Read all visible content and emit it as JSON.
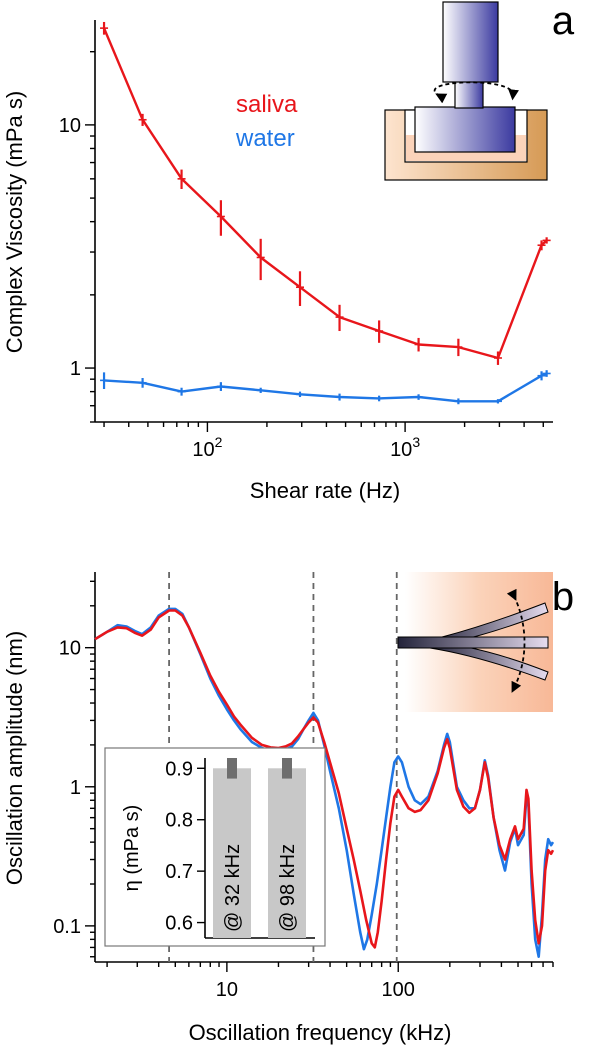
{
  "colors": {
    "saliva": "#e8161b",
    "water": "#1f77e6",
    "inset_bar": "#c8c8c8",
    "inset_err": "#6e6e6e"
  },
  "chart_data": [
    {
      "id": "a",
      "type": "line",
      "panel_label": "a",
      "xlabel": "Shear rate (Hz)",
      "ylabel": "Complex Viscosity (mPa s)",
      "xscale": "log",
      "yscale": "log",
      "xlim": [
        27,
        5600
      ],
      "ylim": [
        0.6,
        27
      ],
      "x_tick_labels": [
        {
          "v": 100,
          "base": "10",
          "exp": "2"
        },
        {
          "v": 1000,
          "base": "10",
          "exp": "3"
        }
      ],
      "y_tick_labels": [
        {
          "v": 1,
          "label": "1"
        },
        {
          "v": 10,
          "label": "10"
        }
      ],
      "legend": [
        {
          "name": "saliva",
          "color": "#e8161b"
        },
        {
          "name": "water",
          "color": "#1f77e6"
        }
      ],
      "series": [
        {
          "name": "saliva",
          "color": "#e8161b",
          "points": [
            {
              "x": 30,
              "y": 25,
              "err": 1.5
            },
            {
              "x": 47,
              "y": 10.5,
              "err": 0.6
            },
            {
              "x": 74,
              "y": 6.0,
              "err": 0.55
            },
            {
              "x": 117,
              "y": 4.2,
              "err": 0.7
            },
            {
              "x": 186,
              "y": 2.85,
              "err": 0.55
            },
            {
              "x": 294,
              "y": 2.15,
              "err": 0.35
            },
            {
              "x": 466,
              "y": 1.62,
              "err": 0.2
            },
            {
              "x": 739,
              "y": 1.42,
              "err": 0.15
            },
            {
              "x": 1170,
              "y": 1.25,
              "err": 0.08
            },
            {
              "x": 1860,
              "y": 1.22,
              "err": 0.1
            },
            {
              "x": 2950,
              "y": 1.1,
              "err": 0.07
            },
            {
              "x": 4900,
              "y": 3.2,
              "err": 0.15
            },
            {
              "x": 5200,
              "y": 3.35,
              "err": 0.1
            }
          ]
        },
        {
          "name": "water",
          "color": "#1f77e6",
          "points": [
            {
              "x": 30,
              "y": 0.89,
              "err": 0.07
            },
            {
              "x": 47,
              "y": 0.87,
              "err": 0.04
            },
            {
              "x": 74,
              "y": 0.8,
              "err": 0.03
            },
            {
              "x": 117,
              "y": 0.84,
              "err": 0.035
            },
            {
              "x": 186,
              "y": 0.81,
              "err": 0.02
            },
            {
              "x": 294,
              "y": 0.78,
              "err": 0.02
            },
            {
              "x": 466,
              "y": 0.76,
              "err": 0.025
            },
            {
              "x": 739,
              "y": 0.75,
              "err": 0.02
            },
            {
              "x": 1170,
              "y": 0.76,
              "err": 0.02
            },
            {
              "x": 1860,
              "y": 0.73,
              "err": 0.02
            },
            {
              "x": 2950,
              "y": 0.73,
              "err": 0.015
            },
            {
              "x": 4900,
              "y": 0.93,
              "err": 0.04
            },
            {
              "x": 5200,
              "y": 0.95,
              "err": 0.03
            }
          ]
        }
      ]
    },
    {
      "id": "b",
      "type": "line",
      "panel_label": "b",
      "xlabel": "Oscillation frequency (kHz)",
      "ylabel": "Oscillation amplitude (nm)",
      "xscale": "log",
      "yscale": "log",
      "xlim": [
        1.7,
        800
      ],
      "ylim": [
        0.055,
        35
      ],
      "x_tick_labels": [
        {
          "v": 10,
          "label": "10"
        },
        {
          "v": 100,
          "label": "100"
        }
      ],
      "y_tick_labels": [
        {
          "v": 0.1,
          "label": "0.1"
        },
        {
          "v": 1,
          "label": "1"
        },
        {
          "v": 10,
          "label": "10"
        }
      ],
      "vlines": [
        4.6,
        32,
        98
      ],
      "series": [
        {
          "name": "water",
          "color": "#1f77e6",
          "points": [
            [
              1.7,
              11.5
            ],
            [
              2.0,
              13
            ],
            [
              2.3,
              14.5
            ],
            [
              2.6,
              14.2
            ],
            [
              2.9,
              13.2
            ],
            [
              3.2,
              12.5
            ],
            [
              3.6,
              14
            ],
            [
              4.0,
              17
            ],
            [
              4.6,
              19
            ],
            [
              5.0,
              19
            ],
            [
              5.5,
              17.5
            ],
            [
              6.0,
              14
            ],
            [
              7.0,
              9
            ],
            [
              8.0,
              6
            ],
            [
              9.0,
              4.5
            ],
            [
              10.0,
              3.6
            ],
            [
              11.0,
              3.0
            ],
            [
              12.0,
              2.6
            ],
            [
              14.0,
              2.1
            ],
            [
              16.0,
              1.9
            ],
            [
              18.0,
              1.8
            ],
            [
              20.0,
              1.8
            ],
            [
              22.0,
              1.85
            ],
            [
              24.0,
              1.95
            ],
            [
              26.0,
              2.2
            ],
            [
              28.0,
              2.6
            ],
            [
              30.0,
              3.0
            ],
            [
              32.0,
              3.4
            ],
            [
              34.0,
              3.0
            ],
            [
              37.0,
              2.0
            ],
            [
              40.0,
              1.3
            ],
            [
              45.0,
              0.7
            ],
            [
              50.0,
              0.35
            ],
            [
              55.0,
              0.17
            ],
            [
              60.0,
              0.09
            ],
            [
              63.0,
              0.068
            ],
            [
              66.0,
              0.08
            ],
            [
              70.0,
              0.12
            ],
            [
              75.0,
              0.2
            ],
            [
              80.0,
              0.35
            ],
            [
              85.0,
              0.6
            ],
            [
              90.0,
              1.0
            ],
            [
              95.0,
              1.5
            ],
            [
              100.0,
              1.65
            ],
            [
              105.0,
              1.5
            ],
            [
              115.0,
              1.0
            ],
            [
              125.0,
              0.8
            ],
            [
              135.0,
              0.75
            ],
            [
              150.0,
              0.85
            ],
            [
              170.0,
              1.3
            ],
            [
              185.0,
              2.0
            ],
            [
              193.0,
              2.4
            ],
            [
              200.0,
              2.1
            ],
            [
              220.0,
              1.0
            ],
            [
              240.0,
              0.8
            ],
            [
              260.0,
              0.7
            ],
            [
              280.0,
              0.7
            ],
            [
              300.0,
              0.95
            ],
            [
              320.0,
              1.55
            ],
            [
              335.0,
              1.2
            ],
            [
              360.0,
              0.6
            ],
            [
              390.0,
              0.35
            ],
            [
              420.0,
              0.25
            ],
            [
              450.0,
              0.4
            ],
            [
              480.0,
              0.5
            ],
            [
              500.0,
              0.38
            ],
            [
              540.0,
              0.45
            ],
            [
              560.0,
              0.85
            ],
            [
              575.0,
              0.75
            ],
            [
              600.0,
              0.2
            ],
            [
              630.0,
              0.08
            ],
            [
              660.0,
              0.06
            ],
            [
              690.0,
              0.12
            ],
            [
              720.0,
              0.3
            ],
            [
              750.0,
              0.42
            ],
            [
              780.0,
              0.38
            ],
            [
              800.0,
              0.4
            ]
          ]
        },
        {
          "name": "saliva",
          "color": "#e8161b",
          "points": [
            [
              1.7,
              11.5
            ],
            [
              2.0,
              13
            ],
            [
              2.3,
              14
            ],
            [
              2.6,
              13.8
            ],
            [
              2.9,
              12.8
            ],
            [
              3.2,
              12.2
            ],
            [
              3.6,
              13.5
            ],
            [
              4.0,
              16.5
            ],
            [
              4.6,
              18.5
            ],
            [
              5.0,
              18.5
            ],
            [
              5.5,
              17
            ],
            [
              6.0,
              14
            ],
            [
              7.0,
              9.2
            ],
            [
              8.0,
              6.3
            ],
            [
              9.0,
              4.8
            ],
            [
              10.0,
              3.9
            ],
            [
              11.0,
              3.2
            ],
            [
              12.0,
              2.8
            ],
            [
              14.0,
              2.25
            ],
            [
              16.0,
              2.0
            ],
            [
              18.0,
              1.92
            ],
            [
              20.0,
              1.9
            ],
            [
              22.0,
              1.95
            ],
            [
              24.0,
              2.05
            ],
            [
              26.0,
              2.3
            ],
            [
              28.0,
              2.6
            ],
            [
              30.0,
              2.9
            ],
            [
              32.0,
              3.15
            ],
            [
              34.0,
              2.9
            ],
            [
              37.0,
              2.1
            ],
            [
              40.0,
              1.5
            ],
            [
              45.0,
              0.9
            ],
            [
              50.0,
              0.5
            ],
            [
              55.0,
              0.3
            ],
            [
              60.0,
              0.18
            ],
            [
              65.0,
              0.11
            ],
            [
              70.0,
              0.075
            ],
            [
              73.0,
              0.07
            ],
            [
              76.0,
              0.09
            ],
            [
              80.0,
              0.15
            ],
            [
              85.0,
              0.3
            ],
            [
              90.0,
              0.55
            ],
            [
              95.0,
              0.85
            ],
            [
              100.0,
              0.95
            ],
            [
              105.0,
              0.85
            ],
            [
              115.0,
              0.7
            ],
            [
              125.0,
              0.66
            ],
            [
              135.0,
              0.68
            ],
            [
              150.0,
              0.8
            ],
            [
              170.0,
              1.25
            ],
            [
              185.0,
              1.9
            ],
            [
              193.0,
              2.2
            ],
            [
              200.0,
              1.9
            ],
            [
              220.0,
              0.95
            ],
            [
              240.0,
              0.72
            ],
            [
              260.0,
              0.65
            ],
            [
              280.0,
              0.7
            ],
            [
              300.0,
              0.95
            ],
            [
              320.0,
              1.5
            ],
            [
              335.0,
              1.15
            ],
            [
              360.0,
              0.6
            ],
            [
              390.0,
              0.38
            ],
            [
              420.0,
              0.3
            ],
            [
              450.0,
              0.42
            ],
            [
              480.0,
              0.52
            ],
            [
              500.0,
              0.42
            ],
            [
              540.0,
              0.5
            ],
            [
              560.0,
              0.95
            ],
            [
              575.0,
              0.82
            ],
            [
              600.0,
              0.25
            ],
            [
              630.0,
              0.11
            ],
            [
              660.0,
              0.075
            ],
            [
              690.0,
              0.1
            ],
            [
              720.0,
              0.25
            ],
            [
              750.0,
              0.35
            ],
            [
              780.0,
              0.33
            ],
            [
              800.0,
              0.35
            ]
          ]
        }
      ],
      "inset": {
        "type": "bar",
        "ylabel": "η (mPa s)",
        "ylim": [
          0.57,
          0.92
        ],
        "y_tick_labels": [
          "0.6",
          "0.7",
          "0.8",
          "0.9"
        ],
        "y_tick_values": [
          0.6,
          0.7,
          0.8,
          0.9
        ],
        "categories": [
          "@ 32 kHz",
          "@ 98 kHz"
        ],
        "values": [
          0.9,
          0.9
        ],
        "err_high": [
          0.92,
          0.92
        ],
        "err_low": [
          0.88,
          0.88
        ]
      }
    }
  ]
}
